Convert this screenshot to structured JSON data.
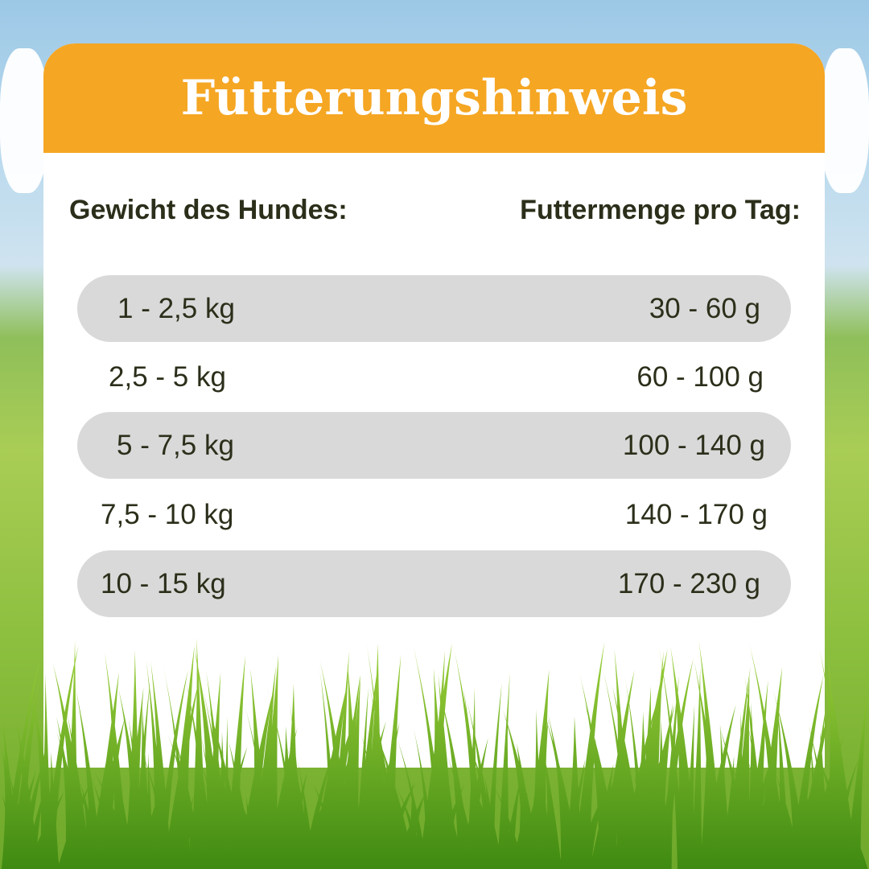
{
  "title": "Fütterungshinweis",
  "columns": {
    "weight": "Gewicht des Hundes:",
    "amount": "Futtermenge pro Tag:"
  },
  "rows": [
    {
      "weight": "1 - 2,5 kg",
      "amount": "30 - 60 g"
    },
    {
      "weight": "2,5 - 5 kg",
      "amount": "60 - 100 g"
    },
    {
      "weight": "5 - 7,5 kg",
      "amount": "100 - 140 g"
    },
    {
      "weight": "7,5 - 10 kg",
      "amount": "140 - 170 g"
    },
    {
      "weight": "10 - 15 kg",
      "amount": "170 - 230 g"
    }
  ],
  "colors": {
    "header": "#f5a623",
    "text": "#2b2f1a",
    "row_shade": "#d9d9d9"
  }
}
